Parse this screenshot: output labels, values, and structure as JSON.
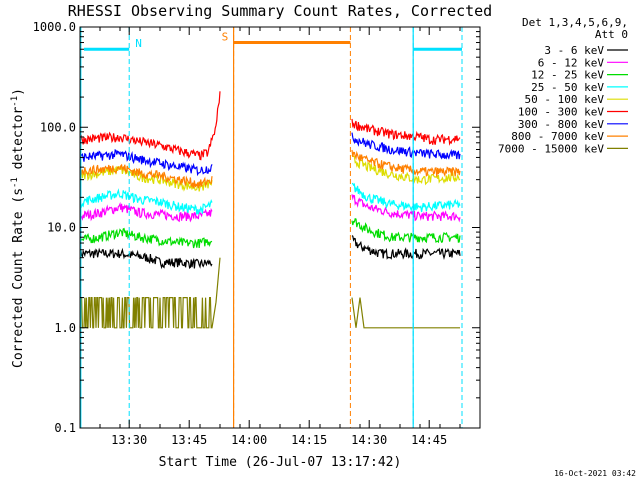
{
  "chart_data": {
    "type": "line",
    "title": "RHESSI Observing Summary Count Rates, Corrected",
    "xlabel": "Start Time (26-Jul-07 13:17:42)",
    "ylabel_main": "Corrected Count Rate (s",
    "ylabel_sup1": "-1",
    "ylabel_mid": " detector",
    "ylabel_sup2": "-1",
    "ylabel_end": ")",
    "yscale": "log",
    "ylim": [
      0.1,
      1000
    ],
    "xlim_min": [
      0,
      100
    ],
    "x_tick_labels": [
      "13:30",
      "13:45",
      "14:00",
      "14:15",
      "14:30",
      "14:45"
    ],
    "x_ticks_min": [
      12.3,
      27.3,
      42.3,
      57.3,
      72.3,
      87.3
    ],
    "y_tick_labels": [
      "0.1",
      "1.0",
      "10.0",
      "100.0",
      "1000.0"
    ],
    "y_ticks": [
      0.1,
      1,
      10,
      100,
      1000
    ],
    "legend_header": [
      "Det 1,3,4,5,6,9,",
      "Att 0"
    ],
    "legend_placement": "right",
    "footer_date": "16-Oct-2021 03:42",
    "markers": [
      {
        "label": "N",
        "color": "#00e0ff",
        "x_min": [
          12.3
        ],
        "start_min": 1,
        "end_min": 12.3,
        "y": 600
      },
      {
        "label": "",
        "color": "#00e0ff",
        "x_min": [
          83.3,
          95.5
        ],
        "start_min": 83.3,
        "end_min": 95.5,
        "y": 600
      },
      {
        "label": "S",
        "color": "#ff8000",
        "x_min": [
          38.4,
          67.6
        ],
        "start_min": 38.4,
        "end_min": 67.6,
        "y": 700
      }
    ],
    "series": [
      {
        "name": "3 - 6 keV",
        "color": "#000000",
        "pre": [
          [
            0,
            5.5
          ],
          [
            10,
            5.5
          ],
          [
            17,
            5.0
          ],
          [
            20,
            4.5
          ],
          [
            25,
            4.5
          ],
          [
            30,
            4.3
          ],
          [
            33,
            4.5
          ]
        ],
        "post": [
          [
            68,
            7.5
          ],
          [
            70,
            6.5
          ],
          [
            75,
            5.5
          ],
          [
            80,
            5.5
          ],
          [
            88,
            5.5
          ],
          [
            95,
            5.5
          ]
        ]
      },
      {
        "name": "6 - 12 keV",
        "color": "#ff00ff",
        "pre": [
          [
            0,
            13
          ],
          [
            5,
            14
          ],
          [
            10,
            16
          ],
          [
            15,
            14
          ],
          [
            20,
            13.5
          ],
          [
            25,
            13
          ],
          [
            30,
            13
          ],
          [
            33,
            14
          ]
        ],
        "post": [
          [
            68,
            20
          ],
          [
            72,
            16
          ],
          [
            78,
            14
          ],
          [
            85,
            13
          ],
          [
            95,
            13
          ]
        ]
      },
      {
        "name": "12 - 25 keV",
        "color": "#00dd00",
        "pre": [
          [
            0,
            7.5
          ],
          [
            5,
            8
          ],
          [
            10,
            9
          ],
          [
            15,
            8
          ],
          [
            20,
            7.5
          ],
          [
            25,
            7
          ],
          [
            30,
            7
          ],
          [
            33,
            7.5
          ]
        ],
        "post": [
          [
            68,
            12
          ],
          [
            72,
            9.5
          ],
          [
            78,
            8
          ],
          [
            85,
            8
          ],
          [
            95,
            8
          ]
        ]
      },
      {
        "name": "25 - 50 keV",
        "color": "#00ffff",
        "pre": [
          [
            0,
            18
          ],
          [
            5,
            20
          ],
          [
            10,
            22
          ],
          [
            15,
            19
          ],
          [
            20,
            18
          ],
          [
            25,
            16
          ],
          [
            30,
            15
          ],
          [
            33,
            17
          ]
        ],
        "post": [
          [
            68,
            26
          ],
          [
            72,
            20
          ],
          [
            78,
            17
          ],
          [
            85,
            16
          ],
          [
            95,
            17
          ]
        ]
      },
      {
        "name": "50 - 100 keV",
        "color": "#dddd00",
        "pre": [
          [
            0,
            33
          ],
          [
            5,
            35
          ],
          [
            10,
            38
          ],
          [
            15,
            32
          ],
          [
            20,
            30
          ],
          [
            25,
            27
          ],
          [
            30,
            25
          ],
          [
            33,
            28
          ]
        ],
        "post": [
          [
            68,
            48
          ],
          [
            72,
            40
          ],
          [
            78,
            34
          ],
          [
            85,
            30
          ],
          [
            95,
            32
          ]
        ]
      },
      {
        "name": "100 - 300 keV",
        "color": "#ff0000",
        "pre": [
          [
            0,
            75
          ],
          [
            5,
            78
          ],
          [
            10,
            80
          ],
          [
            15,
            72
          ],
          [
            20,
            66
          ],
          [
            25,
            58
          ],
          [
            30,
            52
          ],
          [
            32,
            56
          ],
          [
            34,
            100
          ],
          [
            35,
            230
          ]
        ],
        "post": [
          [
            68,
            110
          ],
          [
            72,
            96
          ],
          [
            78,
            85
          ],
          [
            85,
            80
          ],
          [
            88,
            75
          ],
          [
            95,
            78
          ]
        ]
      },
      {
        "name": "300 - 800 keV",
        "color": "#0000ff",
        "pre": [
          [
            0,
            50
          ],
          [
            5,
            52
          ],
          [
            10,
            54
          ],
          [
            15,
            48
          ],
          [
            20,
            44
          ],
          [
            25,
            40
          ],
          [
            30,
            37
          ],
          [
            33,
            40
          ]
        ],
        "post": [
          [
            68,
            80
          ],
          [
            72,
            68
          ],
          [
            78,
            60
          ],
          [
            85,
            55
          ],
          [
            95,
            52
          ]
        ]
      },
      {
        "name": "800 - 7000 keV",
        "color": "#ff8000",
        "pre": [
          [
            0,
            37
          ],
          [
            5,
            38
          ],
          [
            10,
            40
          ],
          [
            15,
            35
          ],
          [
            20,
            33
          ],
          [
            25,
            30
          ],
          [
            30,
            27
          ],
          [
            33,
            30
          ]
        ],
        "post": [
          [
            68,
            55
          ],
          [
            72,
            46
          ],
          [
            78,
            40
          ],
          [
            85,
            36
          ],
          [
            95,
            36
          ]
        ]
      },
      {
        "name": "7000 - 15000 keV",
        "color": "#808000",
        "pre": [
          [
            0,
            2
          ],
          [
            2,
            1
          ],
          [
            4,
            2
          ],
          [
            6,
            1
          ],
          [
            8,
            2
          ],
          [
            10,
            1
          ],
          [
            12,
            2
          ],
          [
            14,
            1
          ],
          [
            16,
            1
          ],
          [
            18,
            1
          ],
          [
            20,
            1
          ],
          [
            24,
            1
          ],
          [
            28,
            1
          ],
          [
            33,
            1
          ],
          [
            34,
            1.8
          ],
          [
            35,
            5
          ]
        ],
        "post": [
          [
            68,
            2
          ],
          [
            69,
            1
          ],
          [
            70,
            2
          ],
          [
            71,
            1
          ],
          [
            73,
            1
          ],
          [
            80,
            1
          ],
          [
            95,
            1
          ]
        ]
      }
    ]
  }
}
